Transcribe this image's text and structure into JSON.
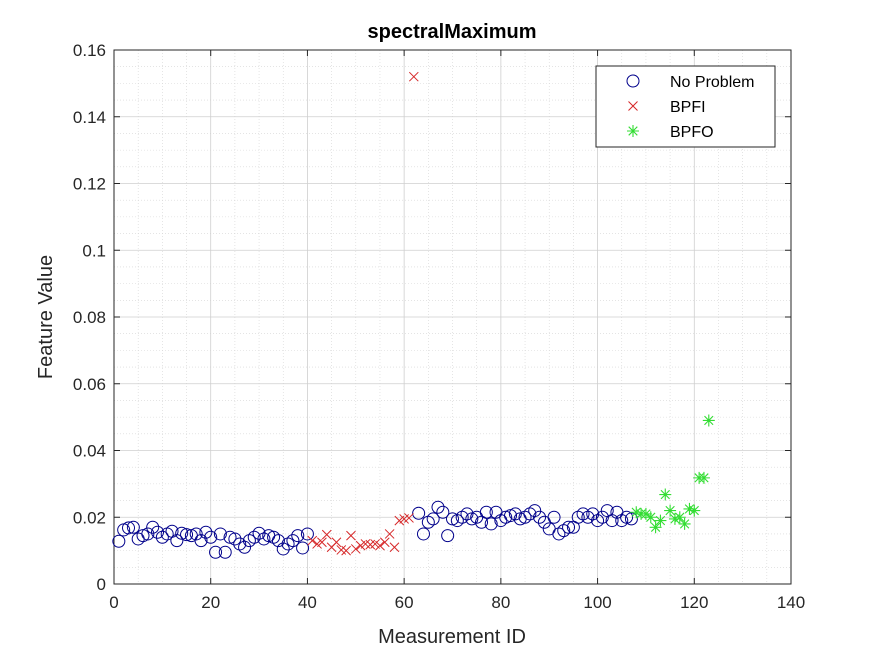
{
  "chart_data": {
    "type": "scatter",
    "title": "spectralMaximum",
    "xlabel": "Measurement ID",
    "ylabel": "Feature Value",
    "xlim": [
      0,
      140
    ],
    "ylim": [
      0,
      0.16
    ],
    "xticks": [
      "0",
      "20",
      "40",
      "60",
      "80",
      "100",
      "120",
      "140"
    ],
    "yticks": [
      "0",
      "0.02",
      "0.04",
      "0.06",
      "0.08",
      "0.1",
      "0.12",
      "0.14",
      "0.16"
    ],
    "grid": true,
    "minor_grid": true,
    "legend_position": "top-right",
    "series": [
      {
        "name": "No Problem",
        "marker": "circle",
        "color": "#00008B",
        "x": [
          1,
          2,
          3,
          4,
          5,
          6,
          7,
          8,
          9,
          10,
          11,
          12,
          13,
          14,
          15,
          16,
          17,
          18,
          19,
          20,
          21,
          22,
          23,
          24,
          25,
          26,
          27,
          28,
          29,
          30,
          31,
          32,
          33,
          34,
          35,
          36,
          37,
          38,
          39,
          40,
          63,
          64,
          65,
          66,
          67,
          68,
          69,
          70,
          71,
          72,
          73,
          74,
          75,
          76,
          77,
          78,
          79,
          80,
          81,
          82,
          83,
          84,
          85,
          86,
          87,
          88,
          89,
          90,
          91,
          92,
          93,
          94,
          95,
          96,
          97,
          98,
          99,
          100,
          101,
          102,
          103,
          104,
          105,
          106,
          107
        ],
        "y": [
          0.0128,
          0.0162,
          0.0168,
          0.017,
          0.0135,
          0.0145,
          0.015,
          0.017,
          0.0155,
          0.014,
          0.015,
          0.0158,
          0.013,
          0.0152,
          0.0148,
          0.0145,
          0.015,
          0.013,
          0.0155,
          0.014,
          0.0095,
          0.015,
          0.0095,
          0.014,
          0.0135,
          0.012,
          0.011,
          0.013,
          0.014,
          0.0152,
          0.0135,
          0.0145,
          0.014,
          0.013,
          0.0105,
          0.012,
          0.013,
          0.0145,
          0.0108,
          0.015,
          0.0212,
          0.015,
          0.0185,
          0.0195,
          0.023,
          0.0215,
          0.0145,
          0.0195,
          0.019,
          0.02,
          0.021,
          0.0195,
          0.02,
          0.0185,
          0.0215,
          0.018,
          0.0215,
          0.019,
          0.02,
          0.0205,
          0.021,
          0.0195,
          0.02,
          0.021,
          0.022,
          0.02,
          0.0185,
          0.0165,
          0.02,
          0.015,
          0.016,
          0.017,
          0.017,
          0.02,
          0.021,
          0.02,
          0.021,
          0.019,
          0.02,
          0.022,
          0.019,
          0.0215,
          0.019,
          0.02,
          0.0195
        ]
      },
      {
        "name": "BPFI",
        "marker": "x",
        "color": "#D62728",
        "x": [
          41,
          42,
          43,
          44,
          45,
          46,
          47,
          48,
          49,
          50,
          51,
          52,
          53,
          54,
          55,
          56,
          57,
          58,
          59,
          60,
          61,
          62
        ],
        "y": [
          0.013,
          0.012,
          0.0125,
          0.0148,
          0.011,
          0.0125,
          0.0102,
          0.01,
          0.0145,
          0.0105,
          0.0115,
          0.012,
          0.0118,
          0.012,
          0.0115,
          0.0125,
          0.015,
          0.011,
          0.019,
          0.0195,
          0.0198,
          0.152
        ]
      },
      {
        "name": "BPFO",
        "marker": "star",
        "color": "#33DD33",
        "x": [
          108,
          109,
          110,
          111,
          112,
          113,
          114,
          115,
          116,
          117,
          118,
          119,
          120,
          121,
          122,
          123
        ],
        "y": [
          0.0215,
          0.021,
          0.021,
          0.02,
          0.017,
          0.019,
          0.0268,
          0.022,
          0.0195,
          0.02,
          0.018,
          0.0225,
          0.022,
          0.0318,
          0.0318,
          0.049
        ]
      }
    ]
  }
}
